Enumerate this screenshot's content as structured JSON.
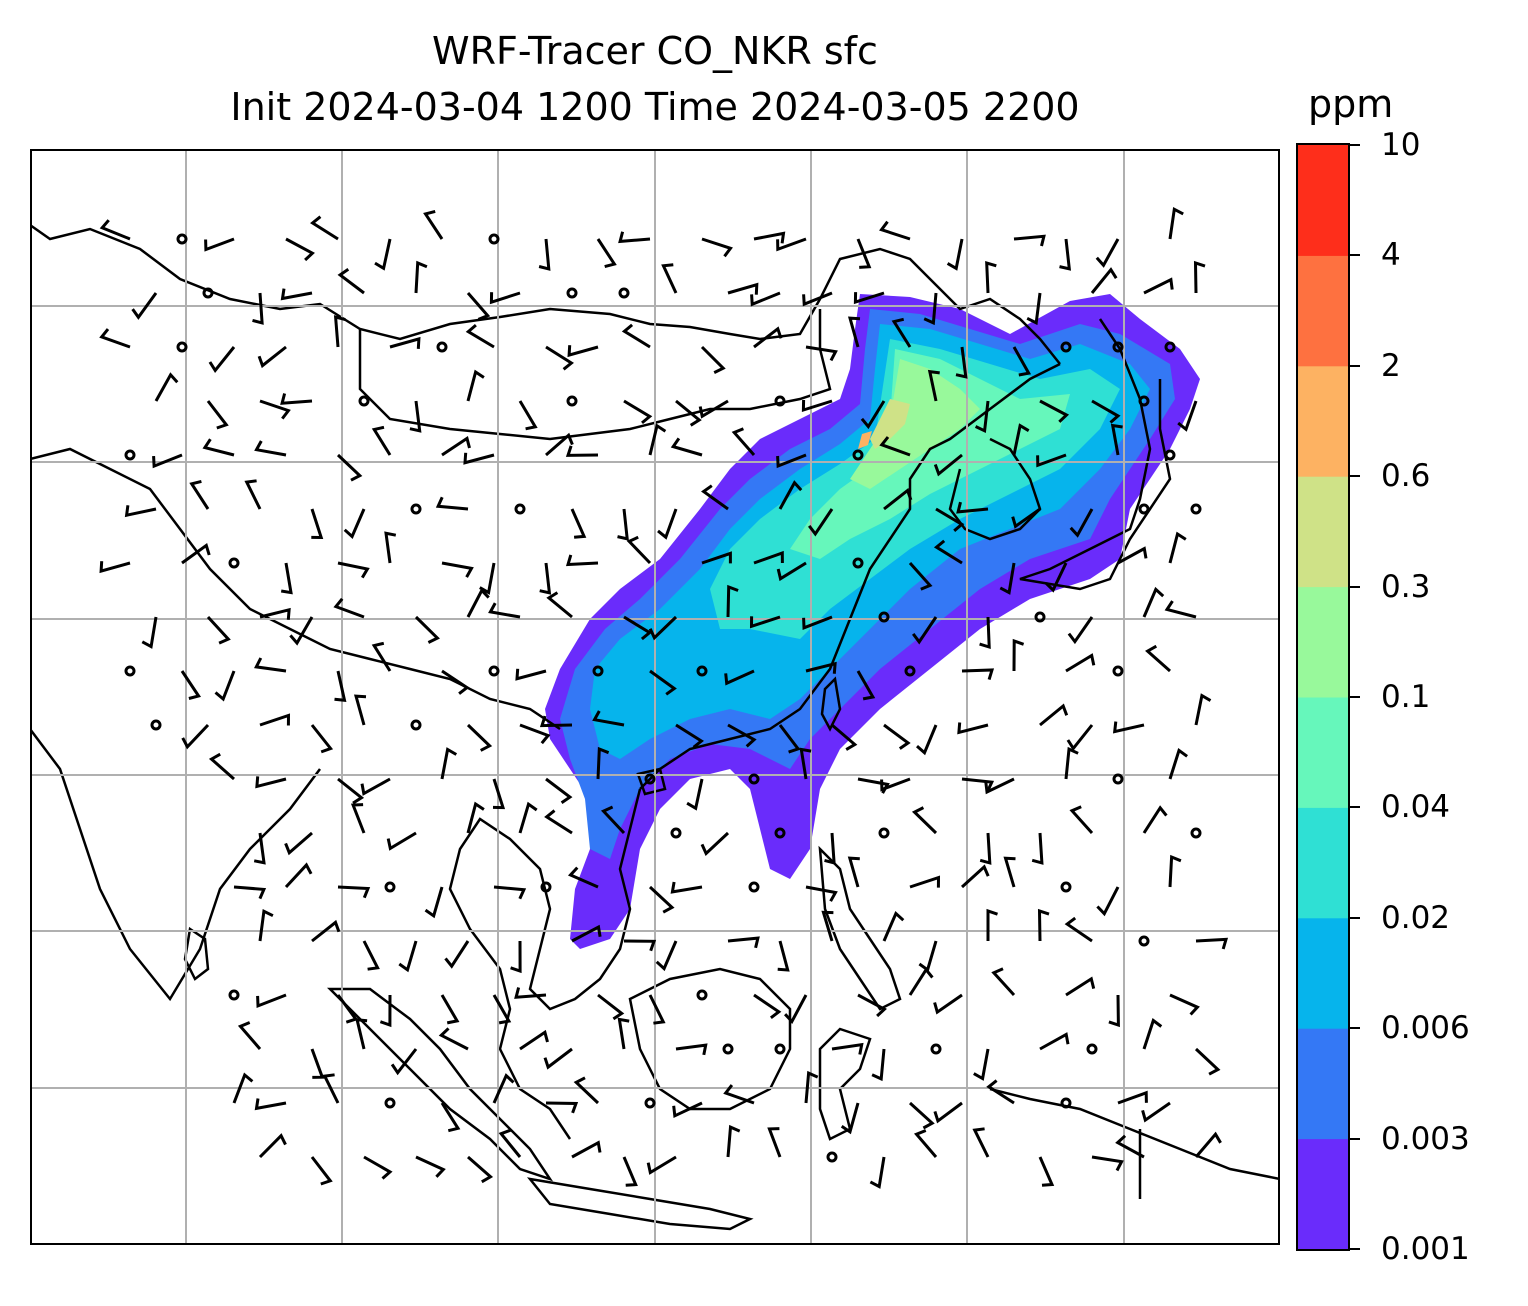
{
  "title": {
    "line1": "WRF-Tracer CO_NKR sfc",
    "line2": "Init 2024-03-04 1200 Time 2024-03-05 2200"
  },
  "colorbar": {
    "unit": "ppm",
    "levels": [
      "0.001",
      "0.003",
      "0.006",
      "0.02",
      "0.04",
      "0.1",
      "0.3",
      "0.6",
      "2",
      "4",
      "10"
    ],
    "colors": [
      "#6a2cfb",
      "#3478f5",
      "#06b4ec",
      "#2fe0d4",
      "#66f7bb",
      "#98f99b",
      "#cfe287",
      "#fdb262",
      "#fe7140",
      "#fe2e1b"
    ]
  },
  "map": {
    "grid": true,
    "field": "CO tracer concentration (surface)",
    "overlay": "wind barbs",
    "plume_color_low": "#6a2cfb",
    "plume_color_mid": "#06b4ec",
    "plume_color_high": "#98f99b"
  }
}
